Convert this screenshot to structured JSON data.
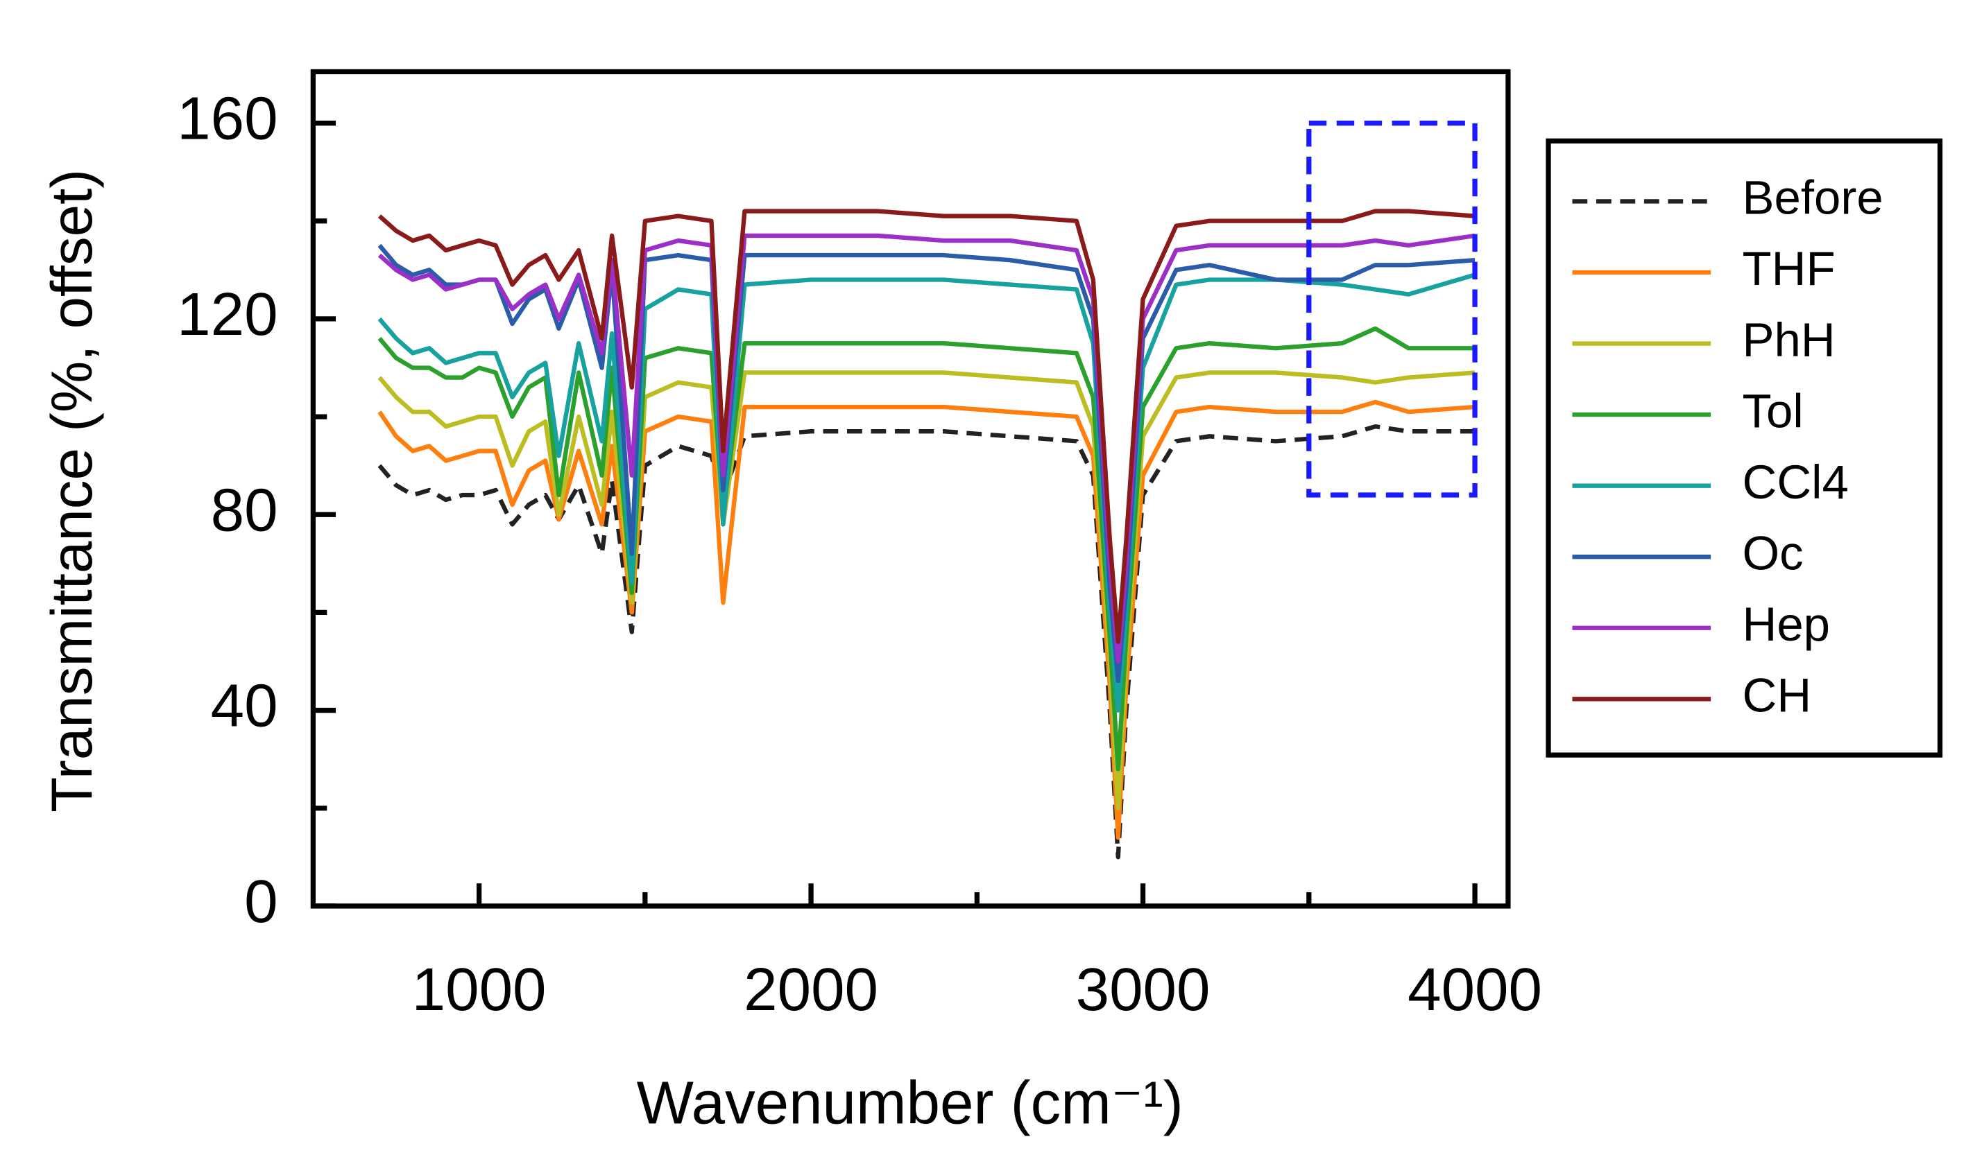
{
  "chart_data": {
    "type": "line",
    "xlabel": "Wavenumber (cm⁻¹)",
    "ylabel": "Transmittance (%, offset)",
    "xlim": [
      500,
      4100
    ],
    "ylim": [
      0,
      170.5
    ],
    "xticks": [
      1000,
      2000,
      3000,
      4000
    ],
    "xminorticks": [
      1500,
      2500,
      3500
    ],
    "yticks": [
      0,
      40,
      80,
      120,
      160
    ],
    "yminorticks": [
      20,
      60,
      100,
      140
    ],
    "grid": false,
    "legend": "outside-right",
    "highlight_box": {
      "xlim": [
        3500,
        4000
      ],
      "ylim": [
        84,
        160
      ],
      "color": "#1a1aff"
    },
    "x": [
      700,
      750,
      800,
      850,
      900,
      950,
      1000,
      1050,
      1100,
      1150,
      1200,
      1240,
      1300,
      1370,
      1400,
      1460,
      1500,
      1600,
      1700,
      1735,
      1800,
      2000,
      2200,
      2400,
      2600,
      2800,
      2850,
      2900,
      2925,
      2950,
      3000,
      3100,
      3200,
      3400,
      3600,
      3700,
      3800,
      4000
    ],
    "series": [
      {
        "name": "Before",
        "color": "#222222",
        "dashed": true,
        "values": [
          90,
          86,
          84,
          85,
          83,
          84,
          84,
          85,
          78,
          82,
          84,
          79,
          86,
          72,
          87,
          56,
          90,
          94,
          92,
          84,
          96,
          97,
          97,
          97,
          96,
          95,
          88,
          40,
          10,
          40,
          84,
          95,
          96,
          95,
          96,
          98,
          97,
          97
        ]
      },
      {
        "name": "THF",
        "color": "#ff7f0e",
        "values": [
          101,
          96,
          93,
          94,
          91,
          92,
          93,
          93,
          82,
          89,
          91,
          79,
          93,
          78,
          94,
          60,
          97,
          100,
          99,
          62,
          102,
          102,
          102,
          102,
          101,
          100,
          92,
          45,
          14,
          45,
          88,
          101,
          102,
          101,
          101,
          103,
          101,
          102
        ]
      },
      {
        "name": "PhH",
        "color": "#bcbd22",
        "values": [
          108,
          104,
          101,
          101,
          98,
          99,
          100,
          100,
          90,
          97,
          99,
          80,
          100,
          82,
          101,
          62,
          104,
          107,
          106,
          78,
          109,
          109,
          109,
          109,
          108,
          107,
          98,
          50,
          20,
          50,
          96,
          108,
          109,
          109,
          108,
          107,
          108,
          109
        ]
      },
      {
        "name": "Tol",
        "color": "#2ca02c",
        "values": [
          116,
          112,
          110,
          110,
          108,
          108,
          110,
          109,
          100,
          106,
          108,
          84,
          109,
          88,
          110,
          64,
          112,
          114,
          113,
          80,
          115,
          115,
          115,
          115,
          114,
          113,
          104,
          55,
          28,
          55,
          102,
          114,
          115,
          114,
          115,
          118,
          114,
          114
        ]
      },
      {
        "name": "CCl4",
        "color": "#17a2a0",
        "values": [
          120,
          116,
          113,
          114,
          111,
          112,
          113,
          113,
          104,
          109,
          111,
          92,
          115,
          95,
          117,
          66,
          122,
          126,
          125,
          78,
          127,
          128,
          128,
          128,
          127,
          126,
          115,
          60,
          40,
          60,
          110,
          127,
          128,
          128,
          127,
          126,
          125,
          129
        ]
      },
      {
        "name": "Oc",
        "color": "#2a5caa",
        "values": [
          135,
          131,
          129,
          130,
          127,
          127,
          128,
          128,
          119,
          124,
          126,
          118,
          128,
          110,
          130,
          72,
          132,
          133,
          132,
          85,
          133,
          133,
          133,
          133,
          132,
          130,
          120,
          65,
          46,
          65,
          116,
          130,
          131,
          128,
          128,
          131,
          131,
          132
        ]
      },
      {
        "name": "Hep",
        "color": "#9b30c8",
        "values": [
          133,
          130,
          128,
          129,
          126,
          127,
          128,
          128,
          122,
          125,
          127,
          120,
          129,
          113,
          132,
          88,
          134,
          136,
          135,
          88,
          137,
          137,
          137,
          136,
          136,
          134,
          124,
          70,
          50,
          70,
          120,
          134,
          135,
          135,
          135,
          136,
          135,
          137
        ]
      },
      {
        "name": "CH",
        "color": "#8b1a1a",
        "values": [
          141,
          138,
          136,
          137,
          134,
          135,
          136,
          135,
          127,
          131,
          133,
          128,
          134,
          116,
          137,
          106,
          140,
          141,
          140,
          93,
          142,
          142,
          142,
          141,
          141,
          140,
          128,
          75,
          54,
          75,
          124,
          139,
          140,
          140,
          140,
          142,
          142,
          141
        ]
      }
    ]
  }
}
